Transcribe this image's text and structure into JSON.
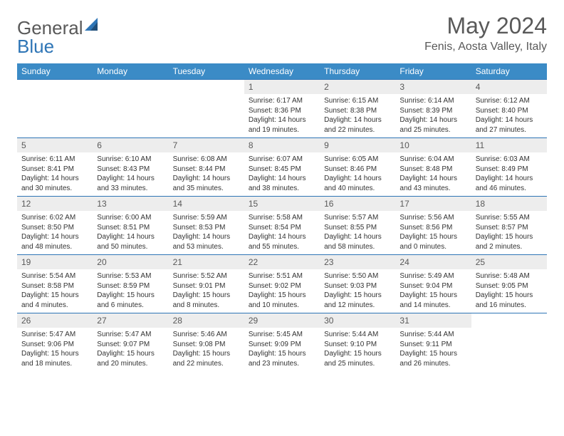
{
  "header": {
    "logo_general": "General",
    "logo_blue": "Blue",
    "month_title": "May 2024",
    "location": "Fenis, Aosta Valley, Italy"
  },
  "weekdays": [
    "Sunday",
    "Monday",
    "Tuesday",
    "Wednesday",
    "Thursday",
    "Friday",
    "Saturday"
  ],
  "styling": {
    "header_bg": "#3b8bc6",
    "header_fg": "#ffffff",
    "border_color": "#2e75b6",
    "daynum_bg": "#ededed",
    "text_color": "#595959",
    "body_fontsize": 10,
    "title_fontsize": 32
  },
  "weeks": [
    [
      null,
      null,
      null,
      {
        "n": "1",
        "sr": "Sunrise: 6:17 AM",
        "ss": "Sunset: 8:36 PM",
        "dl1": "Daylight: 14 hours",
        "dl2": "and 19 minutes."
      },
      {
        "n": "2",
        "sr": "Sunrise: 6:15 AM",
        "ss": "Sunset: 8:38 PM",
        "dl1": "Daylight: 14 hours",
        "dl2": "and 22 minutes."
      },
      {
        "n": "3",
        "sr": "Sunrise: 6:14 AM",
        "ss": "Sunset: 8:39 PM",
        "dl1": "Daylight: 14 hours",
        "dl2": "and 25 minutes."
      },
      {
        "n": "4",
        "sr": "Sunrise: 6:12 AM",
        "ss": "Sunset: 8:40 PM",
        "dl1": "Daylight: 14 hours",
        "dl2": "and 27 minutes."
      }
    ],
    [
      {
        "n": "5",
        "sr": "Sunrise: 6:11 AM",
        "ss": "Sunset: 8:41 PM",
        "dl1": "Daylight: 14 hours",
        "dl2": "and 30 minutes."
      },
      {
        "n": "6",
        "sr": "Sunrise: 6:10 AM",
        "ss": "Sunset: 8:43 PM",
        "dl1": "Daylight: 14 hours",
        "dl2": "and 33 minutes."
      },
      {
        "n": "7",
        "sr": "Sunrise: 6:08 AM",
        "ss": "Sunset: 8:44 PM",
        "dl1": "Daylight: 14 hours",
        "dl2": "and 35 minutes."
      },
      {
        "n": "8",
        "sr": "Sunrise: 6:07 AM",
        "ss": "Sunset: 8:45 PM",
        "dl1": "Daylight: 14 hours",
        "dl2": "and 38 minutes."
      },
      {
        "n": "9",
        "sr": "Sunrise: 6:05 AM",
        "ss": "Sunset: 8:46 PM",
        "dl1": "Daylight: 14 hours",
        "dl2": "and 40 minutes."
      },
      {
        "n": "10",
        "sr": "Sunrise: 6:04 AM",
        "ss": "Sunset: 8:48 PM",
        "dl1": "Daylight: 14 hours",
        "dl2": "and 43 minutes."
      },
      {
        "n": "11",
        "sr": "Sunrise: 6:03 AM",
        "ss": "Sunset: 8:49 PM",
        "dl1": "Daylight: 14 hours",
        "dl2": "and 46 minutes."
      }
    ],
    [
      {
        "n": "12",
        "sr": "Sunrise: 6:02 AM",
        "ss": "Sunset: 8:50 PM",
        "dl1": "Daylight: 14 hours",
        "dl2": "and 48 minutes."
      },
      {
        "n": "13",
        "sr": "Sunrise: 6:00 AM",
        "ss": "Sunset: 8:51 PM",
        "dl1": "Daylight: 14 hours",
        "dl2": "and 50 minutes."
      },
      {
        "n": "14",
        "sr": "Sunrise: 5:59 AM",
        "ss": "Sunset: 8:53 PM",
        "dl1": "Daylight: 14 hours",
        "dl2": "and 53 minutes."
      },
      {
        "n": "15",
        "sr": "Sunrise: 5:58 AM",
        "ss": "Sunset: 8:54 PM",
        "dl1": "Daylight: 14 hours",
        "dl2": "and 55 minutes."
      },
      {
        "n": "16",
        "sr": "Sunrise: 5:57 AM",
        "ss": "Sunset: 8:55 PM",
        "dl1": "Daylight: 14 hours",
        "dl2": "and 58 minutes."
      },
      {
        "n": "17",
        "sr": "Sunrise: 5:56 AM",
        "ss": "Sunset: 8:56 PM",
        "dl1": "Daylight: 15 hours",
        "dl2": "and 0 minutes."
      },
      {
        "n": "18",
        "sr": "Sunrise: 5:55 AM",
        "ss": "Sunset: 8:57 PM",
        "dl1": "Daylight: 15 hours",
        "dl2": "and 2 minutes."
      }
    ],
    [
      {
        "n": "19",
        "sr": "Sunrise: 5:54 AM",
        "ss": "Sunset: 8:58 PM",
        "dl1": "Daylight: 15 hours",
        "dl2": "and 4 minutes."
      },
      {
        "n": "20",
        "sr": "Sunrise: 5:53 AM",
        "ss": "Sunset: 8:59 PM",
        "dl1": "Daylight: 15 hours",
        "dl2": "and 6 minutes."
      },
      {
        "n": "21",
        "sr": "Sunrise: 5:52 AM",
        "ss": "Sunset: 9:01 PM",
        "dl1": "Daylight: 15 hours",
        "dl2": "and 8 minutes."
      },
      {
        "n": "22",
        "sr": "Sunrise: 5:51 AM",
        "ss": "Sunset: 9:02 PM",
        "dl1": "Daylight: 15 hours",
        "dl2": "and 10 minutes."
      },
      {
        "n": "23",
        "sr": "Sunrise: 5:50 AM",
        "ss": "Sunset: 9:03 PM",
        "dl1": "Daylight: 15 hours",
        "dl2": "and 12 minutes."
      },
      {
        "n": "24",
        "sr": "Sunrise: 5:49 AM",
        "ss": "Sunset: 9:04 PM",
        "dl1": "Daylight: 15 hours",
        "dl2": "and 14 minutes."
      },
      {
        "n": "25",
        "sr": "Sunrise: 5:48 AM",
        "ss": "Sunset: 9:05 PM",
        "dl1": "Daylight: 15 hours",
        "dl2": "and 16 minutes."
      }
    ],
    [
      {
        "n": "26",
        "sr": "Sunrise: 5:47 AM",
        "ss": "Sunset: 9:06 PM",
        "dl1": "Daylight: 15 hours",
        "dl2": "and 18 minutes."
      },
      {
        "n": "27",
        "sr": "Sunrise: 5:47 AM",
        "ss": "Sunset: 9:07 PM",
        "dl1": "Daylight: 15 hours",
        "dl2": "and 20 minutes."
      },
      {
        "n": "28",
        "sr": "Sunrise: 5:46 AM",
        "ss": "Sunset: 9:08 PM",
        "dl1": "Daylight: 15 hours",
        "dl2": "and 22 minutes."
      },
      {
        "n": "29",
        "sr": "Sunrise: 5:45 AM",
        "ss": "Sunset: 9:09 PM",
        "dl1": "Daylight: 15 hours",
        "dl2": "and 23 minutes."
      },
      {
        "n": "30",
        "sr": "Sunrise: 5:44 AM",
        "ss": "Sunset: 9:10 PM",
        "dl1": "Daylight: 15 hours",
        "dl2": "and 25 minutes."
      },
      {
        "n": "31",
        "sr": "Sunrise: 5:44 AM",
        "ss": "Sunset: 9:11 PM",
        "dl1": "Daylight: 15 hours",
        "dl2": "and 26 minutes."
      },
      null
    ]
  ]
}
